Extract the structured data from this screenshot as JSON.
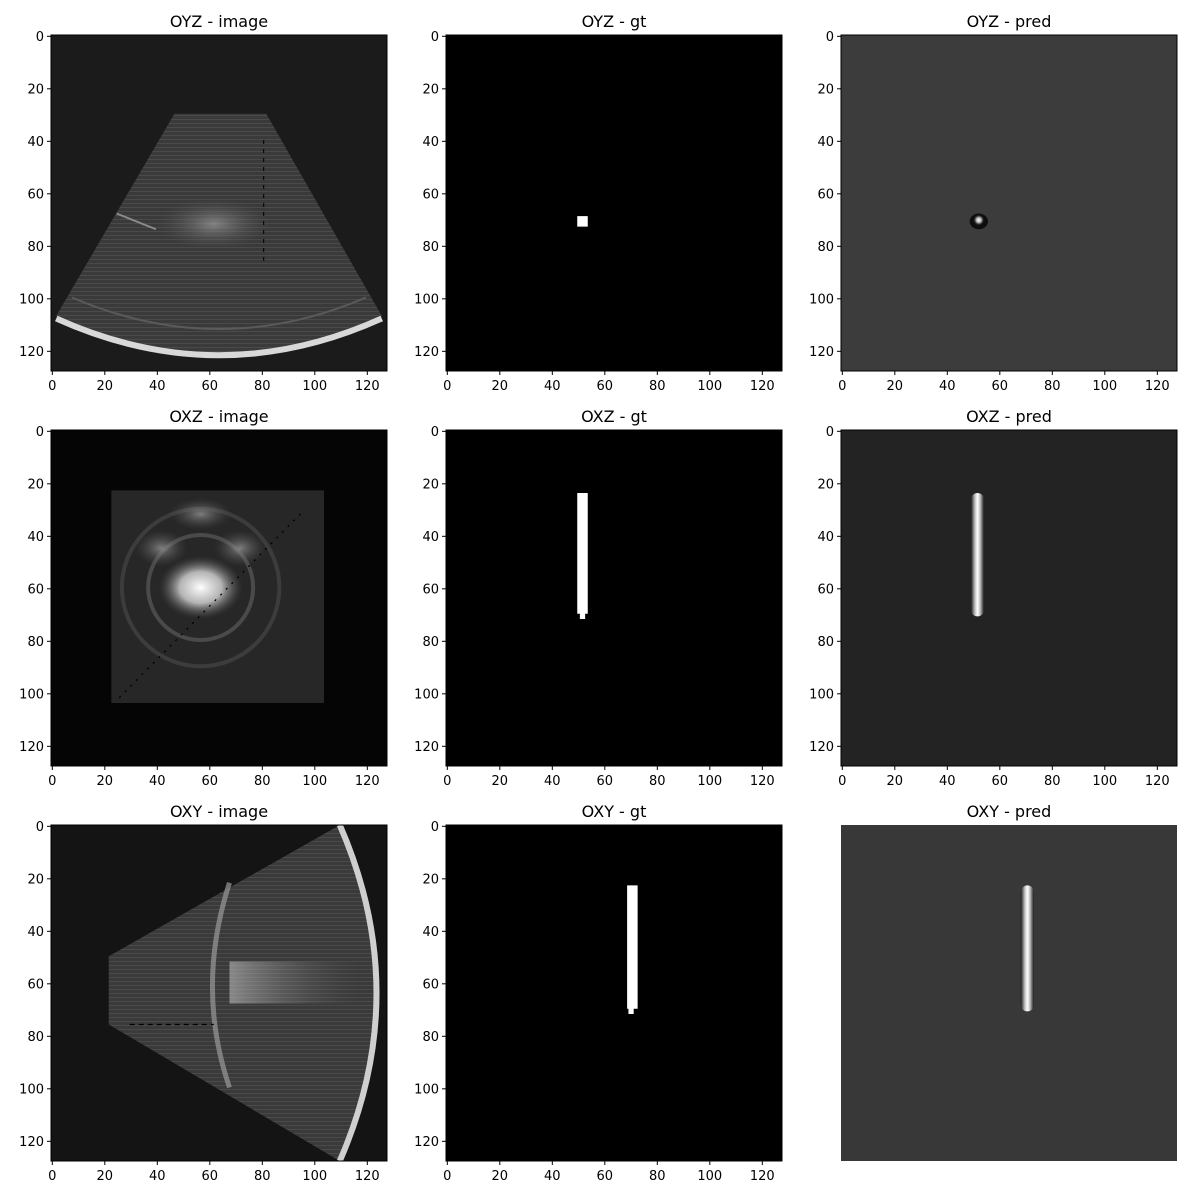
{
  "figure": {
    "panels": [
      {
        "title": "OYZ - image",
        "kind": "oyz_image",
        "show_axes": true
      },
      {
        "title": "OYZ - gt",
        "kind": "oyz_gt",
        "show_axes": true
      },
      {
        "title": "OYZ - pred",
        "kind": "oyz_pred",
        "show_axes": true
      },
      {
        "title": "OXZ - image",
        "kind": "oxz_image",
        "show_axes": true
      },
      {
        "title": "OXZ - gt",
        "kind": "oxz_gt",
        "show_axes": true
      },
      {
        "title": "OXZ - pred",
        "kind": "oxz_pred",
        "show_axes": true
      },
      {
        "title": "OXY - image",
        "kind": "oxy_image",
        "show_axes": true
      },
      {
        "title": "OXY - gt",
        "kind": "oxy_gt",
        "show_axes": true
      },
      {
        "title": "OXY - pred",
        "kind": "oxy_pred",
        "show_axes": false
      }
    ],
    "ticks": [
      "0",
      "20",
      "40",
      "60",
      "80",
      "100",
      "120"
    ],
    "colors": {
      "oyz_image_bg": "#1b1b1b",
      "oxz_image_bg": "#050505",
      "oxy_image_bg": "#141414",
      "gt_bg": "#000000",
      "mask": "#ffffff",
      "oyz_pred_bg": "#3c3c3c",
      "oxz_pred_bg": "#232323",
      "oxy_pred_bg": "#383838"
    }
  }
}
